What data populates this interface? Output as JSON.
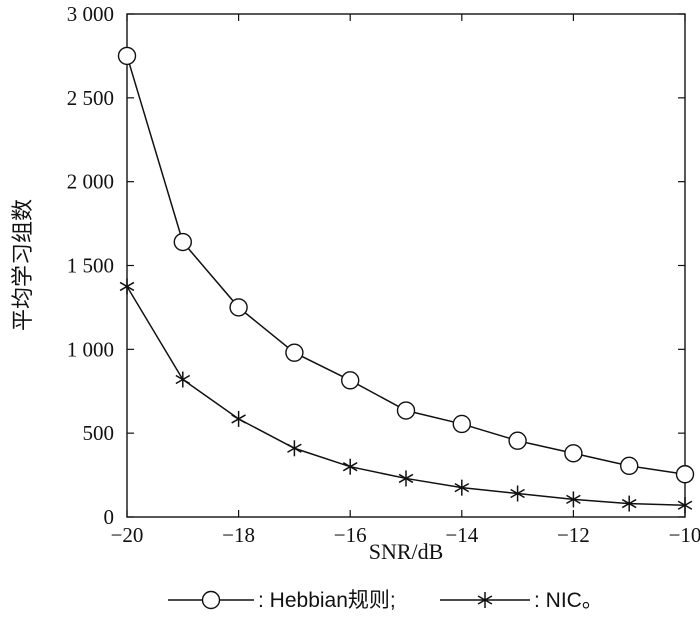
{
  "chart_data": {
    "type": "line",
    "xlabel": "SNR/dB",
    "ylabel": "平均学习组数",
    "xlim": [
      -20,
      -10
    ],
    "ylim": [
      0,
      3000
    ],
    "x": [
      -20,
      -19,
      -18,
      -17,
      -16,
      -15,
      -14,
      -13,
      -12,
      -11,
      -10
    ],
    "x_ticks": [
      -20,
      -18,
      -16,
      -14,
      -12,
      -10
    ],
    "x_tick_labels": [
      "−20",
      "−18",
      "−16",
      "−14",
      "−12",
      "−10"
    ],
    "y_ticks": [
      0,
      500,
      1000,
      1500,
      2000,
      2500,
      3000
    ],
    "y_tick_labels": [
      "0",
      "500",
      "1 000",
      "1 500",
      "2 000",
      "2 500",
      "3 000"
    ],
    "grid": false,
    "legend_position": "bottom",
    "series": [
      {
        "name": "Hebbian规则",
        "marker": "circle",
        "values": [
          2750,
          1640,
          1250,
          980,
          815,
          635,
          555,
          455,
          380,
          305,
          255
        ]
      },
      {
        "name": "NIC",
        "marker": "asterisk",
        "values": [
          1375,
          820,
          585,
          410,
          300,
          230,
          175,
          140,
          105,
          80,
          70
        ]
      }
    ]
  },
  "legend": {
    "entries": [
      {
        "series": "Hebbian规则",
        "text": ": Hebbian规则;"
      },
      {
        "series": "NIC",
        "text": ": NIC。"
      }
    ]
  }
}
